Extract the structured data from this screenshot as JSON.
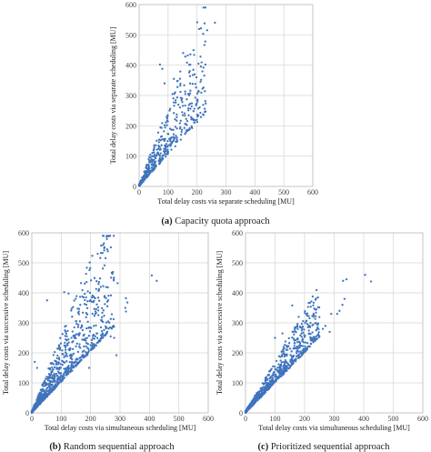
{
  "figure": {
    "point_color": "#3f74bd",
    "captions": [
      {
        "tag": "(a)",
        "text": "Capacity quota approach"
      },
      {
        "tag": "(b)",
        "text": "Random sequential approach"
      },
      {
        "tag": "(c)",
        "text": "Prioritized sequential approach"
      }
    ]
  },
  "chart_data": [
    {
      "type": "scatter",
      "xlabel": "Total delay costs via separate scheduling [MU]",
      "ylabel": "Total delay costs via separate scheduling [MU]",
      "xlim": [
        0,
        600
      ],
      "ylim": [
        0,
        600
      ],
      "xticks": [
        0,
        100,
        200,
        300,
        400,
        500,
        600
      ],
      "yticks": [
        0,
        100,
        200,
        300,
        400,
        500,
        600
      ],
      "grid": true,
      "cloud": {
        "count": 520,
        "x_max": 230,
        "slope_low": 1.05,
        "slope_high": 2.7,
        "seed": 11
      },
      "points": [
        [
          262,
          540
        ],
        [
          235,
          515
        ],
        [
          222,
          392
        ],
        [
          212,
          428
        ],
        [
          152,
          440
        ],
        [
          168,
          432
        ],
        [
          177,
          402
        ],
        [
          72,
          402
        ],
        [
          80,
          388
        ],
        [
          192,
          370
        ],
        [
          198,
          360
        ],
        [
          120,
          355
        ],
        [
          88,
          340
        ],
        [
          143,
          312
        ],
        [
          176,
          340
        ]
      ]
    },
    {
      "type": "scatter",
      "xlabel": "Total delay costs via simultaneous scheduling [MU]",
      "ylabel": "Total delay costs via successive scheduling [MU]",
      "xlim": [
        0,
        600
      ],
      "ylim": [
        0,
        600
      ],
      "xticks": [
        0,
        100,
        200,
        300,
        400,
        500,
        600
      ],
      "yticks": [
        0,
        100,
        200,
        300,
        400,
        500,
        600
      ],
      "grid": true,
      "cloud": {
        "count": 900,
        "x_max": 280,
        "slope_low": 1.02,
        "slope_high": 2.6,
        "seed": 23
      },
      "points": [
        [
          408,
          458
        ],
        [
          425,
          440
        ],
        [
          292,
          432
        ],
        [
          320,
          382
        ],
        [
          325,
          368
        ],
        [
          318,
          350
        ],
        [
          320,
          338
        ],
        [
          110,
          402
        ],
        [
          125,
          398
        ],
        [
          52,
          375
        ],
        [
          198,
          400
        ],
        [
          165,
          360
        ],
        [
          212,
          385
        ],
        [
          280,
          250
        ],
        [
          268,
          255
        ],
        [
          10,
          170
        ],
        [
          18,
          150
        ],
        [
          288,
          192
        ],
        [
          195,
          150
        ],
        [
          235,
          285
        ],
        [
          240,
          260
        ]
      ]
    },
    {
      "type": "scatter",
      "xlabel": "Total delay costs via simultaneous scheduling [MU]",
      "ylabel": "Total delay costs via successive scheduling [MU]",
      "xlim": [
        0,
        600
      ],
      "ylim": [
        0,
        600
      ],
      "xticks": [
        0,
        100,
        200,
        300,
        400,
        500,
        600
      ],
      "yticks": [
        0,
        100,
        200,
        300,
        400,
        500,
        600
      ],
      "grid": true,
      "cloud": {
        "count": 850,
        "x_max": 250,
        "slope_low": 1.0,
        "slope_high": 1.7,
        "seed": 37
      },
      "points": [
        [
          405,
          460
        ],
        [
          425,
          438
        ],
        [
          342,
          445
        ],
        [
          330,
          440
        ],
        [
          335,
          380
        ],
        [
          328,
          360
        ],
        [
          318,
          340
        ],
        [
          310,
          330
        ],
        [
          290,
          330
        ],
        [
          270,
          290
        ],
        [
          262,
          280
        ],
        [
          250,
          255
        ],
        [
          240,
          245
        ],
        [
          285,
          270
        ],
        [
          158,
          358
        ],
        [
          180,
          320
        ],
        [
          205,
          305
        ],
        [
          220,
          300
        ],
        [
          175,
          290
        ],
        [
          190,
          275
        ],
        [
          100,
          250
        ],
        [
          125,
          265
        ],
        [
          135,
          238
        ]
      ]
    }
  ]
}
